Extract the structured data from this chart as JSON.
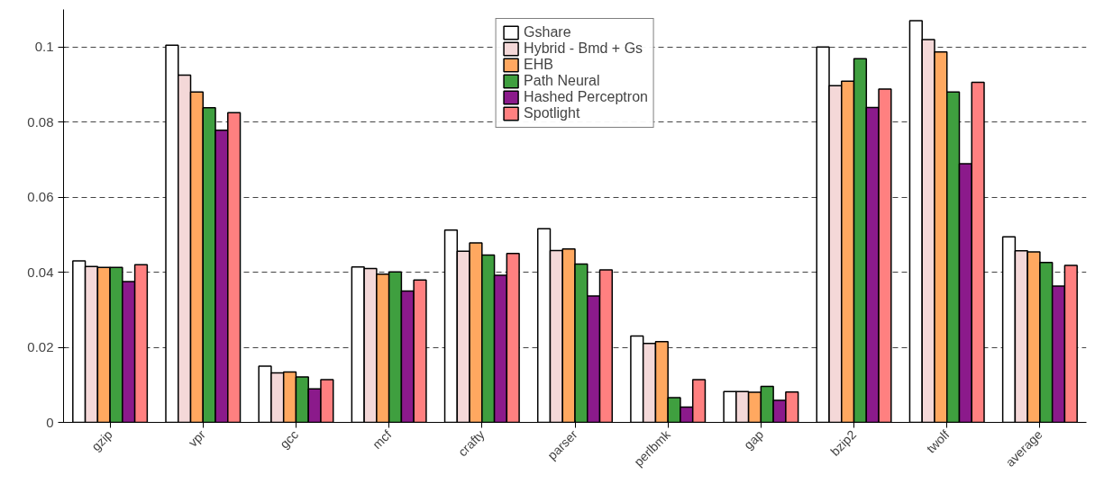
{
  "chart_data": {
    "type": "bar",
    "categories": [
      "gzip",
      "vpr",
      "gcc",
      "mcf",
      "crafty",
      "parser",
      "perlbmk",
      "gap",
      "bzip2",
      "twolf",
      "average"
    ],
    "series": [
      {
        "name": "Gshare",
        "color": "#ffffff",
        "values": [
          0.043,
          0.1005,
          0.015,
          0.0414,
          0.0512,
          0.0516,
          0.023,
          0.0082,
          0.1,
          0.107,
          0.0494
        ]
      },
      {
        "name": "Hybrid - Bmd + Gs",
        "color": "#f4d8d8",
        "values": [
          0.0415,
          0.0925,
          0.0132,
          0.041,
          0.0456,
          0.0458,
          0.021,
          0.0082,
          0.0897,
          0.102,
          0.0457
        ]
      },
      {
        "name": "EHB",
        "color": "#ffa860",
        "values": [
          0.0413,
          0.088,
          0.0134,
          0.0395,
          0.0478,
          0.0462,
          0.0215,
          0.008,
          0.0909,
          0.0987,
          0.0454
        ]
      },
      {
        "name": "Path Neural",
        "color": "#3f9f3f",
        "values": [
          0.0413,
          0.0838,
          0.0121,
          0.0401,
          0.0446,
          0.0422,
          0.0066,
          0.0096,
          0.0969,
          0.088,
          0.0426
        ]
      },
      {
        "name": "Hashed Perceptron",
        "color": "#8b1a8b",
        "values": [
          0.0375,
          0.0778,
          0.0089,
          0.035,
          0.0392,
          0.0337,
          0.0041,
          0.0059,
          0.0839,
          0.0689,
          0.0363
        ]
      },
      {
        "name": "Spotlight",
        "color": "#ff8080",
        "values": [
          0.042,
          0.0825,
          0.0114,
          0.0379,
          0.045,
          0.0406,
          0.0114,
          0.0081,
          0.0888,
          0.0906,
          0.0418
        ]
      }
    ],
    "ylim": [
      0,
      0.11
    ],
    "yticks": [
      0,
      0.02,
      0.04,
      0.06,
      0.08,
      0.1
    ],
    "grid": "y",
    "legend": "top"
  }
}
